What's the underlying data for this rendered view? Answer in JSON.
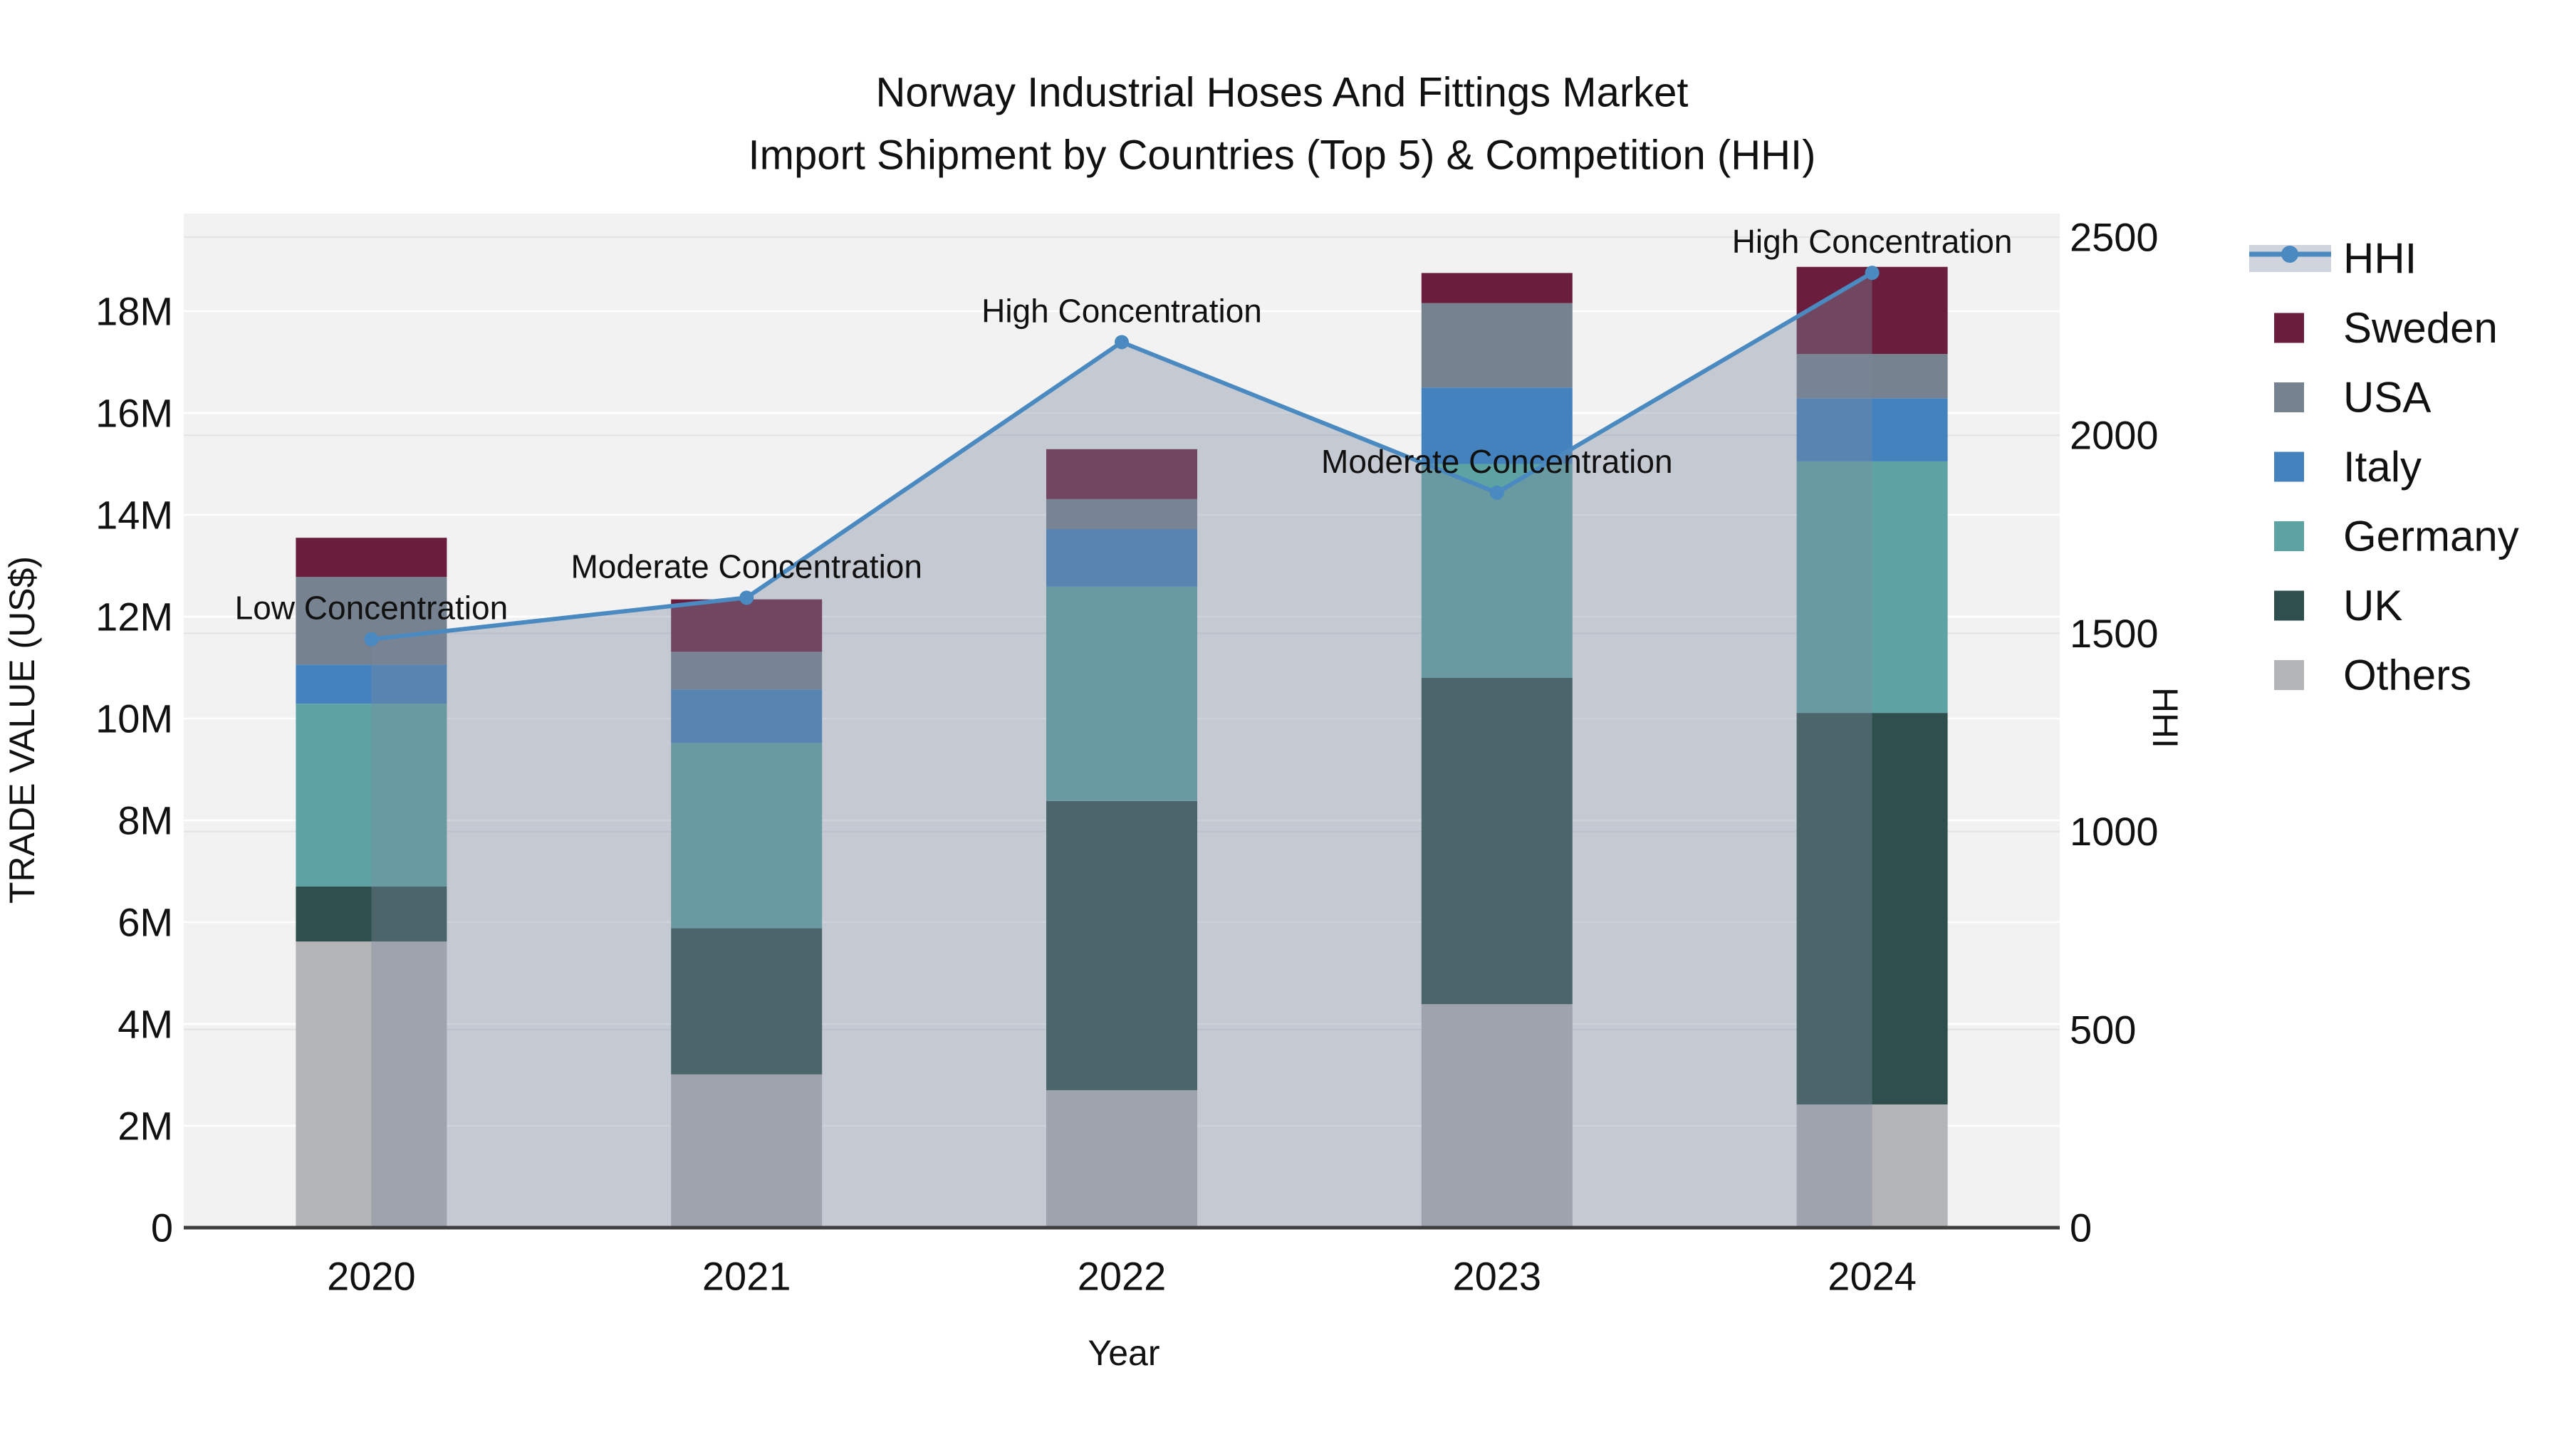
{
  "chart_data": {
    "type": "bar-stacked+line",
    "title_line1": "Norway Industrial Hoses And Fittings Market",
    "title_line2": "Import Shipment by Countries (Top 5) & Competition (HHI)",
    "categories": [
      "2020",
      "2021",
      "2022",
      "2023",
      "2024"
    ],
    "value_unit": "US$ millions",
    "series": [
      {
        "name": "Others",
        "color": "#b3b4b6",
        "values": [
          5.62,
          3.01,
          2.7,
          4.39,
          2.42
        ]
      },
      {
        "name": "UK",
        "color": "#2e4f4d",
        "values": [
          1.08,
          2.87,
          5.68,
          6.41,
          7.69
        ]
      },
      {
        "name": "Germany",
        "color": "#5ea3a4",
        "values": [
          3.59,
          3.64,
          4.21,
          4.2,
          4.94
        ]
      },
      {
        "name": "Italy",
        "color": "#4382bd",
        "values": [
          0.77,
          1.05,
          1.13,
          1.5,
          1.24
        ]
      },
      {
        "name": "USA",
        "color": "#76828f",
        "values": [
          1.72,
          0.74,
          0.59,
          1.66,
          0.87
        ]
      },
      {
        "name": "Sweden",
        "color": "#6b1d3d",
        "values": [
          0.77,
          1.03,
          0.98,
          0.59,
          1.71
        ]
      }
    ],
    "bar_totals_M": [
      13.55,
      12.34,
      15.29,
      18.75,
      18.87
    ],
    "hhi": {
      "name": "HHI",
      "color": "#4a8ac0",
      "area_fill": "rgba(124,136,158,0.38)",
      "values": [
        1485,
        1590,
        2235,
        1855,
        2410
      ]
    },
    "annotations": [
      "Low Concentration",
      "Moderate Concentration",
      "High Concentration",
      "Moderate Concentration",
      "High Concentration"
    ],
    "left_axis": {
      "title": "TRADE VALUE (US$)",
      "tick_labels": [
        "0",
        "2M",
        "4M",
        "6M",
        "8M",
        "10M",
        "12M",
        "14M",
        "16M",
        "18M"
      ],
      "tick_values_M": [
        0,
        2,
        4,
        6,
        8,
        10,
        12,
        14,
        16,
        18
      ],
      "range_M": [
        0,
        19.9
      ]
    },
    "right_axis": {
      "title": "HHI",
      "tick_labels": [
        "0",
        "500",
        "1000",
        "1500",
        "2000",
        "2500"
      ],
      "tick_values": [
        0,
        500,
        1000,
        1500,
        2000,
        2500
      ],
      "range": [
        0,
        2560
      ]
    },
    "x_axis": {
      "title": "Year"
    },
    "legend_order": [
      "HHI",
      "Sweden",
      "USA",
      "Italy",
      "Germany",
      "UK",
      "Others"
    ],
    "style": {
      "plot_background": "#f2f2f2",
      "left_gridline_color": "#ffffff",
      "right_gridline_color": "#e1e3e7",
      "axis_line_color": "#3f3f3f",
      "legend_hhi_band": "#d0d4dc"
    }
  }
}
